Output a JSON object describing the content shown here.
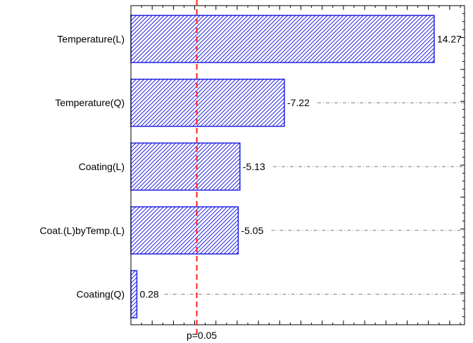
{
  "chart_data": {
    "type": "bar",
    "orientation": "horizontal",
    "categories": [
      "Temperature(L)",
      "Temperature(Q)",
      "Coating(L)",
      "Coat.(L)byTemp.(L)",
      "Coating(Q)"
    ],
    "bar_lengths": [
      14.27,
      7.22,
      5.13,
      5.05,
      0.28
    ],
    "labels": [
      "14.27",
      "-7.22",
      "-5.13",
      "-5.05",
      "0.28"
    ],
    "xlim": [
      0,
      15.7
    ],
    "reference_line": {
      "value": 3.1,
      "label": "p=0.05"
    },
    "colors": {
      "bar": "#2020e0",
      "reference": "#ff2020",
      "leader": "#7a7a7a"
    },
    "grid": false
  }
}
